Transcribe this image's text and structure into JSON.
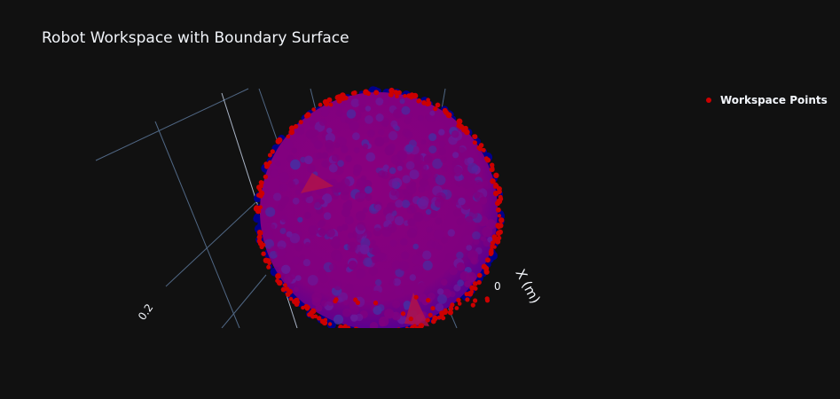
{
  "chart_data": {
    "type": "scatter3d",
    "title": "Robot Workspace with Boundary Surface",
    "axes": {
      "x": {
        "title": "X (m)",
        "visible_ticks": [
          "0"
        ]
      },
      "other_ticks": [
        "0.2"
      ]
    },
    "legend": {
      "placement": "top-right",
      "entries": [
        {
          "name": "Workspace Points",
          "color": "#cc0000"
        }
      ]
    },
    "series": [
      {
        "name": "Workspace Points",
        "marker_color": "#cc0000",
        "description_shape": "sphere"
      }
    ],
    "surface": {
      "interior_color": "#800080",
      "edge_color": "#00008b",
      "accent_color": "#b0124a"
    },
    "colors": {
      "background": "#111111",
      "grid": "#506784",
      "text": "#f2f5fa"
    }
  }
}
